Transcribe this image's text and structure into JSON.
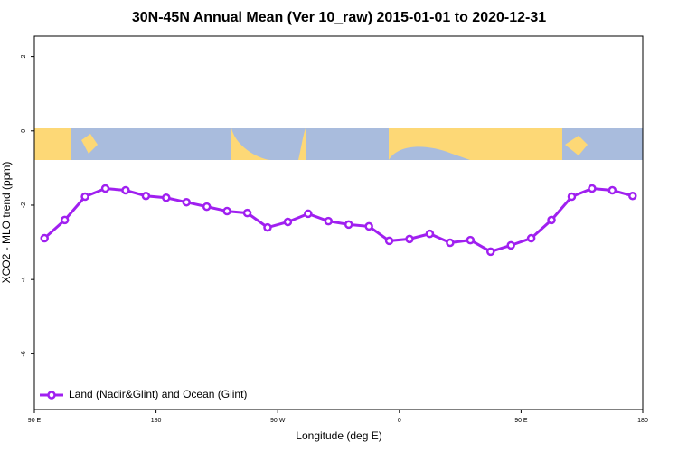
{
  "chart_data": {
    "type": "line",
    "title": "30N-45N Annual Mean (Ver 10_raw)   2015-01-01 to 2020-12-31",
    "x_label": "Longitude (deg E)",
    "y_label": "XCO2 - MLO trend (ppm)",
    "x": [
      97.5,
      112.5,
      127.5,
      142.5,
      157.5,
      172.5,
      187.5,
      202.5,
      217.5,
      232.5,
      247.5,
      262.5,
      277.5,
      292.5,
      307.5,
      322.5,
      337.5,
      352.5,
      367.5,
      382.5,
      397.5,
      412.5,
      427.5,
      442.5,
      457.5,
      472.5,
      487.5,
      502.5,
      517.5,
      532.5
    ],
    "series": [
      {
        "name": "Land (Nadir&Glint) and Ocean (Glint)",
        "color": "#a020f0",
        "values": [
          -2.89,
          -2.4,
          -1.77,
          -1.55,
          -1.6,
          -1.75,
          -1.8,
          -1.92,
          -2.04,
          -2.16,
          -2.21,
          -2.6,
          -2.45,
          -2.23,
          -2.43,
          -2.52,
          -2.57,
          -2.96,
          -2.91,
          -2.77,
          -3.01,
          -2.94,
          -3.25,
          -3.08,
          -2.89,
          -2.4,
          -1.77,
          -1.55,
          -1.6,
          -1.75
        ]
      }
    ],
    "xlim": [
      90,
      540
    ],
    "xticks": [
      {
        "value": 90,
        "label": "90 E"
      },
      180,
      {
        "value": 270,
        "label": "90 W"
      },
      {
        "value": 360,
        "label": "0"
      },
      {
        "value": 450,
        "label": "90 E"
      },
      {
        "value": 540,
        "label": "180"
      }
    ],
    "ylim": [
      -7.5,
      2.55
    ],
    "yticks": [
      2,
      0,
      -2,
      -4,
      -6
    ],
    "legend": "bottom left"
  }
}
